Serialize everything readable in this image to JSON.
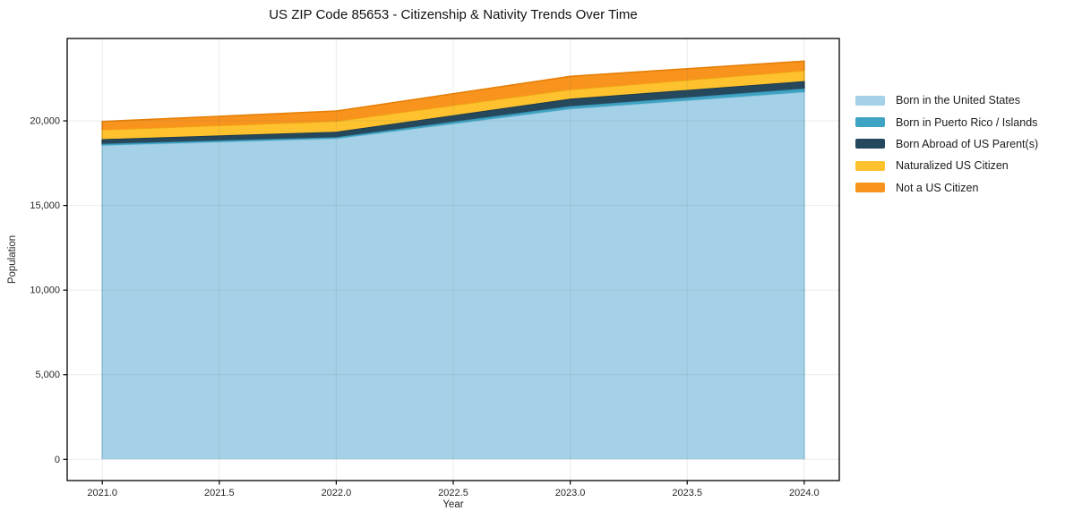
{
  "chart_data": {
    "type": "area",
    "stacked": true,
    "title": "US ZIP Code 85653 - Citizenship & Nativity Trends Over Time",
    "xlabel": "Year",
    "ylabel": "Population",
    "x": [
      2021,
      2022,
      2023,
      2024
    ],
    "series": [
      {
        "name": "Born in the United States",
        "color": "#a4d1e7",
        "edge_color": "#8ec4dd",
        "values": [
          18550,
          18950,
          20700,
          21700
        ]
      },
      {
        "name": "Born in Puerto Rico / Islands",
        "color": "#3fa3c3",
        "edge_color": "#338cab",
        "values": [
          100,
          90,
          170,
          210
        ]
      },
      {
        "name": "Born Abroad of US Parent(s)",
        "color": "#26485c",
        "edge_color": "#1b3748",
        "values": [
          270,
          320,
          440,
          440
        ]
      },
      {
        "name": "Naturalized US Citizen",
        "color": "#fdc22e",
        "edge_color": "#f0a814",
        "values": [
          550,
          620,
          540,
          620
        ]
      },
      {
        "name": "Not a US Citizen",
        "color": "#f8941d",
        "edge_color": "#e57f07",
        "values": [
          490,
          600,
          780,
          560
        ]
      }
    ],
    "xticks": [
      2021.0,
      2021.5,
      2022.0,
      2022.5,
      2023.0,
      2023.5,
      2024.0
    ],
    "yticks": [
      0,
      5000,
      10000,
      15000,
      20000
    ],
    "xlim": [
      2020.85,
      2024.15
    ],
    "ylim": [
      -1253,
      24867
    ],
    "grid": true,
    "grid_color": "rgba(100,100,100,0.13)",
    "frame_color": "#000000",
    "legend_position": "right"
  }
}
